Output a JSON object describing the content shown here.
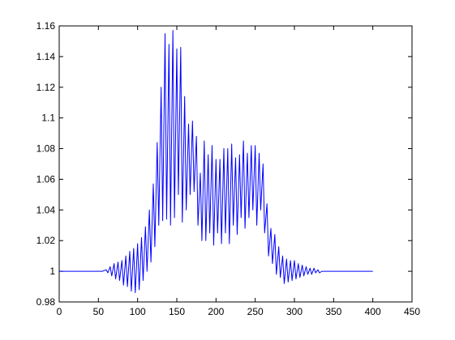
{
  "chart_data": {
    "type": "line",
    "title": "",
    "xlabel": "",
    "ylabel": "",
    "xlim": [
      0,
      450
    ],
    "ylim": [
      0.98,
      1.16
    ],
    "x_ticks": [
      0,
      50,
      100,
      150,
      200,
      250,
      300,
      350,
      400,
      450
    ],
    "y_ticks": [
      0.98,
      1,
      1.02,
      1.04,
      1.06,
      1.08,
      1.1,
      1.12,
      1.14,
      1.16
    ],
    "x_tick_labels": [
      "0",
      "50",
      "100",
      "150",
      "200",
      "250",
      "300",
      "350",
      "400",
      "450"
    ],
    "y_tick_labels": [
      "0.98",
      "1",
      "1.02",
      "1.04",
      "1.06",
      "1.08",
      "1.1",
      "1.12",
      "1.14",
      "1.16"
    ],
    "grid": false,
    "legend": "none",
    "line_color": "#0000ff",
    "axes_color": "#000000",
    "series": [
      {
        "x": [
          0,
          50,
          55,
          60,
          62,
          65,
          67,
          70,
          72,
          75,
          77,
          80,
          82,
          85,
          87,
          90,
          92,
          95,
          97,
          100,
          102,
          105,
          107,
          110,
          112,
          115,
          117,
          120,
          122,
          125,
          127,
          130,
          132,
          135,
          137,
          140,
          142,
          145,
          147,
          150,
          152,
          155,
          157,
          160,
          162,
          165,
          167,
          170,
          172,
          175,
          177,
          180,
          182,
          185,
          187,
          190,
          192,
          195,
          197,
          200,
          202,
          205,
          207,
          210,
          212,
          215,
          217,
          220,
          222,
          225,
          227,
          230,
          232,
          235,
          237,
          240,
          242,
          245,
          247,
          250,
          252,
          255,
          257,
          260,
          262,
          265,
          267,
          270,
          272,
          275,
          277,
          280,
          282,
          285,
          287,
          290,
          292,
          295,
          297,
          300,
          302,
          305,
          307,
          310,
          312,
          315,
          317,
          320,
          322,
          325,
          327,
          330,
          332,
          335,
          340,
          400
        ],
        "y": [
          1.0,
          1.0,
          1.0,
          1.001,
          0.999,
          1.003,
          0.997,
          1.005,
          0.995,
          1.006,
          0.994,
          1.007,
          0.991,
          1.01,
          0.99,
          1.013,
          0.987,
          1.015,
          0.986,
          1.018,
          0.988,
          1.022,
          0.994,
          1.029,
          1.0,
          1.04,
          1.006,
          1.057,
          1.016,
          1.084,
          1.03,
          1.12,
          1.033,
          1.155,
          1.034,
          1.148,
          1.03,
          1.157,
          1.035,
          1.145,
          1.05,
          1.146,
          1.032,
          1.114,
          1.04,
          1.096,
          1.05,
          1.098,
          1.052,
          1.088,
          1.03,
          1.064,
          1.02,
          1.085,
          1.02,
          1.076,
          1.025,
          1.082,
          1.017,
          1.073,
          1.025,
          1.073,
          1.018,
          1.08,
          1.025,
          1.08,
          1.018,
          1.083,
          1.03,
          1.074,
          1.024,
          1.076,
          1.035,
          1.085,
          1.028,
          1.077,
          1.035,
          1.082,
          1.04,
          1.082,
          1.03,
          1.077,
          1.04,
          1.07,
          1.025,
          1.044,
          1.01,
          1.028,
          1.005,
          1.024,
          0.998,
          1.016,
          0.996,
          1.01,
          0.992,
          1.008,
          0.993,
          1.007,
          0.994,
          1.007,
          0.995,
          1.005,
          0.996,
          1.004,
          0.997,
          1.003,
          0.998,
          1.002,
          0.998,
          1.002,
          0.999,
          1.001,
          0.999,
          1.0,
          1.0,
          1.0
        ]
      }
    ]
  }
}
